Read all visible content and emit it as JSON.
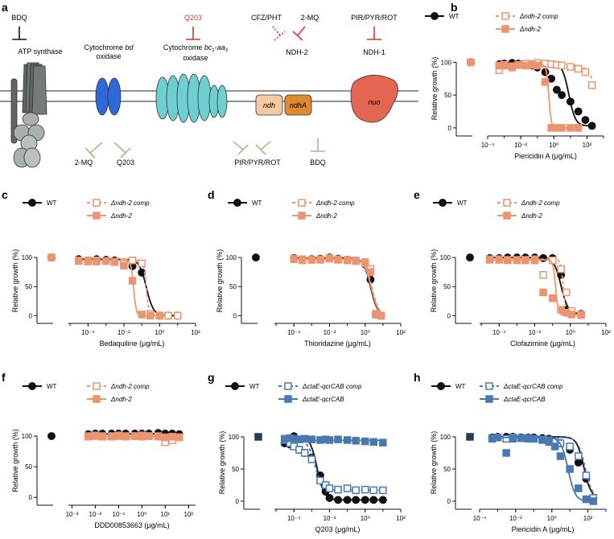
{
  "colors": {
    "wt": "#111111",
    "ndh2": "#eb9470",
    "qcr": "#4a79b1",
    "inhibitor_red": "#d43a2c",
    "inhibitor_black": "#111111",
    "inhibitor_tan": "#c9a98e",
    "atp_synthase": "#5f6664",
    "atp_synthase_light": "#a9b0ae",
    "bd_oxidase": "#2f68d9",
    "bc1_oxidase": "#6dcfcf",
    "ndh": "#f6c9a2",
    "ndhA": "#e08a2f",
    "nuo": "#e36552"
  },
  "diagram": {
    "letter": "a",
    "complexes": {
      "atp_synthase": "ATP synthase",
      "bd_line1": "Cytochrome",
      "bd_italic": "bd",
      "bd_line2": "oxidase",
      "bc1_line1": "Cytochrome",
      "bc1_italic": "bc",
      "bc1_sub1": "1",
      "bc1_mid": "-",
      "bc1_italic2": "aa",
      "bc1_sub2": "3",
      "bc1_line2": "oxidase",
      "ndh2": "NDH-2",
      "ndh1": "NDH-1",
      "ndh": "ndh",
      "ndhA": "ndhA",
      "nuo": "nuo"
    },
    "inhibitors_top": {
      "bdq": "BDQ",
      "q203": "Q203",
      "cfz_pht": "CFZ/PHT",
      "two_mq": "2-MQ",
      "pir": "PIR/PYR/ROT"
    },
    "inhibitors_bottom": {
      "two_mq": "2-MQ",
      "q203": "Q203",
      "pir": "PIR/PYR/ROT",
      "bdq": "BDQ"
    }
  },
  "chart_data": [
    {
      "letter": "b",
      "type": "line",
      "xlabel": "Piericidin A (μg/mL)",
      "ylabel": "Relative growth (%)",
      "xscale": "log",
      "xlim": [
        0.0001,
        1000
      ],
      "ylim": [
        -5,
        125
      ],
      "xticks": [
        "10⁻⁴",
        "10⁻²",
        "10⁰",
        "10²"
      ],
      "yticks": [
        0,
        50,
        100
      ],
      "legend": {
        "wt": "WT",
        "comp": "Δndh-2 comp",
        "mut": "Δndh-2"
      },
      "untreated": [
        {
          "series": "WT",
          "y": 100
        },
        {
          "series": "Δndh-2",
          "y": 100
        }
      ],
      "series": [
        {
          "name": "WT",
          "x": [
            0.0005,
            0.001,
            0.003,
            0.007,
            0.02,
            0.05,
            0.1,
            0.3,
            0.7,
            1.5,
            3,
            10,
            30,
            80,
            200
          ],
          "y": [
            97,
            98,
            99,
            98,
            97,
            95,
            92,
            85,
            75,
            58,
            50,
            40,
            25,
            12,
            3
          ],
          "ic50": 8
        },
        {
          "name": "Δndh-2 comp",
          "x": [
            0.0005,
            0.001,
            0.003,
            0.007,
            0.02,
            0.05,
            0.1,
            0.3,
            0.7,
            1.5,
            3,
            10,
            30,
            80,
            200
          ],
          "y": [
            88,
            95,
            92,
            96,
            98,
            97,
            99,
            98,
            97,
            96,
            95,
            93,
            90,
            85,
            65
          ],
          "ic50": 150
        },
        {
          "name": "Δndh-2",
          "x": [
            0.0005,
            0.001,
            0.003,
            0.007,
            0.02,
            0.05,
            0.1,
            0.3,
            0.7,
            1.5,
            3,
            10,
            30
          ],
          "y": [
            95,
            96,
            94,
            96,
            95,
            96,
            95,
            70,
            0,
            0,
            0,
            0,
            0
          ],
          "ic50": 0.5
        }
      ]
    },
    {
      "letter": "c",
      "type": "line",
      "xlabel": "Bedaquiline (μg/mL)",
      "ylabel": "Relative growth (%)",
      "xscale": "log",
      "xlim": [
        8e-06,
        100
      ],
      "ylim": [
        -5,
        125
      ],
      "xticks": [
        "10⁻⁴",
        "10⁻²",
        "10⁰",
        "10²"
      ],
      "yticks": [
        0,
        50,
        100
      ],
      "legend": {
        "wt": "WT",
        "comp": "Δndh-2 comp",
        "mut": "Δndh-2"
      },
      "untreated": [
        {
          "series": "WT",
          "y": 100
        },
        {
          "series": "Δndh-2",
          "y": 100
        }
      ],
      "series": [
        {
          "name": "WT",
          "x": [
            3e-05,
            0.0001,
            0.0003,
            0.001,
            0.003,
            0.01,
            0.03,
            0.1,
            0.3,
            1,
            3,
            10
          ],
          "y": [
            97,
            95,
            97,
            96,
            95,
            92,
            85,
            74,
            2,
            0,
            0,
            0
          ],
          "ic50": 0.18
        },
        {
          "name": "Δndh-2 comp",
          "x": [
            3e-05,
            0.0001,
            0.0003,
            0.001,
            0.003,
            0.01,
            0.03,
            0.1,
            0.3,
            1,
            3,
            10
          ],
          "y": [
            95,
            93,
            95,
            94,
            93,
            92,
            95,
            90,
            3,
            0,
            0,
            0
          ],
          "ic50": 0.18
        },
        {
          "name": "Δndh-2",
          "x": [
            3e-05,
            0.0001,
            0.0003,
            0.001,
            0.003,
            0.01,
            0.03,
            0.1,
            0.3,
            1
          ],
          "y": [
            94,
            95,
            93,
            94,
            92,
            86,
            60,
            2,
            0,
            0
          ],
          "ic50": 0.035
        }
      ]
    },
    {
      "letter": "d",
      "type": "line",
      "xlabel": "Thioridazine (μg/mL)",
      "ylabel": "Relative growth (%)",
      "xscale": "log",
      "xlim": [
        8e-06,
        100
      ],
      "ylim": [
        -5,
        125
      ],
      "xticks": [
        "10⁻⁴",
        "10⁻²",
        "10⁰",
        "10²"
      ],
      "yticks": [
        0,
        50,
        100
      ],
      "legend": {
        "wt": "WT",
        "comp": "Δndh-2 comp",
        "mut": "Δndh-2"
      },
      "untreated": [
        {
          "series": "WT",
          "y": 100
        }
      ],
      "series": [
        {
          "name": "WT",
          "x": [
            0.0001,
            0.0003,
            0.001,
            0.003,
            0.01,
            0.03,
            0.1,
            0.3,
            1,
            2,
            4,
            8
          ],
          "y": [
            99,
            96,
            97,
            98,
            100,
            98,
            96,
            95,
            88,
            62,
            2,
            0
          ],
          "ic50": 2
        },
        {
          "name": "Δndh-2 comp",
          "x": [
            0.0001,
            0.0003,
            0.001,
            0.003,
            0.01,
            0.03,
            0.1,
            0.3,
            1,
            2,
            4,
            8
          ],
          "y": [
            98,
            97,
            96,
            97,
            99,
            97,
            96,
            95,
            90,
            80,
            3,
            0
          ],
          "ic50": 2.4
        },
        {
          "name": "Δndh-2",
          "x": [
            0.0001,
            0.0003,
            0.001,
            0.003,
            0.01,
            0.03,
            0.1,
            0.3,
            1,
            2,
            4,
            8
          ],
          "y": [
            97,
            95,
            96,
            96,
            98,
            96,
            95,
            94,
            92,
            75,
            2,
            0
          ],
          "ic50": 2.2
        }
      ]
    },
    {
      "letter": "e",
      "type": "line",
      "xlabel": "Clofazimine (μg/mL)",
      "ylabel": "Relative growth (%)",
      "xscale": "log",
      "xlim": [
        8e-06,
        100
      ],
      "ylim": [
        -5,
        125
      ],
      "xticks": [
        "10⁻⁴",
        "10⁻²",
        "10⁰",
        "10²"
      ],
      "yticks": [
        0,
        50,
        100
      ],
      "legend": {
        "wt": "WT",
        "comp": "Δndh-2 comp",
        "mut": "Δndh-2"
      },
      "untreated": [
        {
          "series": "WT",
          "y": 100
        }
      ],
      "series": [
        {
          "name": "WT",
          "x": [
            3e-05,
            0.0001,
            0.0003,
            0.001,
            0.003,
            0.01,
            0.03,
            0.1,
            0.3,
            0.6,
            1.2,
            4
          ],
          "y": [
            99,
            99,
            100,
            100,
            100,
            100,
            99,
            99,
            70,
            10,
            3,
            3
          ],
          "ic50": 0.3
        },
        {
          "name": "Δndh-2 comp",
          "x": [
            3e-05,
            0.0001,
            0.0003,
            0.001,
            0.003,
            0.01,
            0.03,
            0.1,
            0.3,
            0.6,
            1.2,
            4
          ],
          "y": [
            97,
            97,
            96,
            95,
            96,
            97,
            70,
            95,
            80,
            40,
            8,
            2
          ],
          "ic50": 0.4
        },
        {
          "name": "Δndh-2",
          "x": [
            3e-05,
            0.0001,
            0.0003,
            0.001,
            0.003,
            0.01,
            0.03,
            0.1,
            0.3,
            0.6,
            1.2,
            4
          ],
          "y": [
            96,
            96,
            95,
            96,
            95,
            95,
            40,
            30,
            10,
            5,
            2,
            1
          ],
          "ic50": 0.15
        }
      ]
    },
    {
      "letter": "f",
      "type": "line",
      "xlabel": "DDD00853663 (μg/mL)",
      "ylabel": "Relative growth (%)",
      "xscale": "log",
      "xlim": [
        0.0007,
        200
      ],
      "ylim": [
        -5,
        125
      ],
      "xticks": [
        "10⁻³",
        "10⁻²",
        "10⁻¹",
        "10⁰",
        "10¹",
        "10²"
      ],
      "yticks": [
        0,
        50,
        100
      ],
      "legend": {
        "wt": "WT",
        "comp": "Δndh-2 comp",
        "mut": "Δndh-2"
      },
      "untreated": [
        {
          "series": "WT",
          "y": 100
        }
      ],
      "series": [
        {
          "name": "WT",
          "x": [
            0.005,
            0.01,
            0.02,
            0.05,
            0.1,
            0.2,
            0.5,
            1,
            2,
            5,
            10,
            20,
            40
          ],
          "y": [
            103,
            104,
            104,
            104,
            104,
            104,
            104,
            104,
            104,
            105,
            104,
            104,
            103
          ],
          "ic50": null
        },
        {
          "name": "Δndh-2 comp",
          "x": [
            0.005,
            0.01,
            0.02,
            0.05,
            0.1,
            0.2,
            0.5,
            1,
            2,
            5,
            10,
            20,
            40
          ],
          "y": [
            100,
            101,
            100,
            100,
            101,
            100,
            100,
            101,
            100,
            100,
            90,
            93,
            98
          ],
          "ic50": null
        },
        {
          "name": "Δndh-2",
          "x": [
            0.005,
            0.01,
            0.02,
            0.05,
            0.1,
            0.2,
            0.5,
            1,
            2,
            5,
            10,
            20,
            40
          ],
          "y": [
            99,
            100,
            99,
            99,
            100,
            99,
            100,
            99,
            100,
            99,
            98,
            99,
            98
          ],
          "ic50": null
        }
      ]
    },
    {
      "letter": "g",
      "type": "line",
      "xlabel": "Q203 (μg/mL)",
      "ylabel": "Relative growth (%)",
      "xscale": "log",
      "xlim": [
        8e-06,
        100
      ],
      "ylim": [
        -5,
        125
      ],
      "xticks": [
        "10⁻⁴",
        "10⁻²",
        "10⁰",
        "10²"
      ],
      "yticks": [
        0,
        50,
        100
      ],
      "legend": {
        "wt": "WT",
        "comp": "ΔctaE-qcrCAB comp",
        "mut": "ΔctaE-qcrCAB"
      },
      "untreated": [
        {
          "series": "ΔctaE-qcrCAB",
          "y": 100
        }
      ],
      "series": [
        {
          "name": "WT",
          "x": [
            3e-05,
            6e-05,
            0.0001,
            0.0002,
            0.0004,
            0.001,
            0.003,
            0.006,
            0.01,
            0.03,
            0.1,
            0.3,
            1,
            3,
            10
          ],
          "y": [
            90,
            88,
            101,
            80,
            75,
            68,
            40,
            15,
            5,
            2,
            2,
            2,
            2,
            2,
            2
          ],
          "ic50": 0.002
        },
        {
          "name": "ΔctaE-qcrCAB comp",
          "x": [
            3e-05,
            6e-05,
            0.0001,
            0.0002,
            0.0004,
            0.001,
            0.003,
            0.006,
            0.01,
            0.03,
            0.1,
            0.3,
            1,
            3,
            10
          ],
          "y": [
            95,
            90,
            85,
            80,
            75,
            65,
            32,
            25,
            20,
            18,
            20,
            17,
            18,
            17,
            17
          ],
          "ic50": 0.0015
        },
        {
          "name": "ΔctaE-qcrCAB",
          "x": [
            3e-05,
            6e-05,
            0.0001,
            0.0002,
            0.0004,
            0.001,
            0.003,
            0.006,
            0.01,
            0.03,
            0.1,
            0.3,
            1,
            3,
            10
          ],
          "y": [
            97,
            98,
            97,
            96,
            97,
            96,
            95,
            96,
            95,
            96,
            95,
            94,
            93,
            92,
            91
          ],
          "ic50": null
        }
      ]
    },
    {
      "letter": "h",
      "type": "line",
      "xlabel": "Piericidin A (μg/mL)",
      "ylabel": "Relative growth (%)",
      "xscale": "log",
      "xlim": [
        0.0001,
        1000
      ],
      "ylim": [
        -5,
        125
      ],
      "xticks": [
        "10⁻⁴",
        "10⁻²",
        "10⁰",
        "10²"
      ],
      "yticks": [
        0,
        50,
        100
      ],
      "legend": {
        "wt": "WT",
        "comp": "ΔctaE-qcrCAB comp",
        "mut": "ΔctaE-qcrCAB"
      },
      "untreated": [
        {
          "series": "ΔctaE-qcrCAB",
          "y": 100
        }
      ],
      "series": [
        {
          "name": "WT",
          "x": [
            0.0005,
            0.001,
            0.003,
            0.007,
            0.02,
            0.05,
            0.1,
            0.3,
            0.7,
            1.5,
            3,
            10,
            30,
            80,
            200
          ],
          "y": [
            99,
            100,
            100,
            100,
            99,
            99,
            99,
            98,
            97,
            95,
            90,
            80,
            60,
            35,
            5
          ],
          "ic50": 60
        },
        {
          "name": "ΔctaE-qcrCAB comp",
          "x": [
            0.0005,
            0.001,
            0.003,
            0.007,
            0.02,
            0.05,
            0.1,
            0.3,
            0.7,
            1.5,
            3,
            10,
            30,
            80,
            200
          ],
          "y": [
            98,
            99,
            97,
            99,
            98,
            98,
            97,
            96,
            95,
            93,
            90,
            85,
            70,
            40,
            5
          ],
          "ic50": 70
        },
        {
          "name": "ΔctaE-qcrCAB",
          "x": [
            0.0005,
            0.001,
            0.003,
            0.007,
            0.02,
            0.05,
            0.1,
            0.3,
            0.7,
            1.5,
            3,
            10,
            30,
            80,
            200
          ],
          "y": [
            97,
            99,
            75,
            97,
            98,
            97,
            97,
            95,
            92,
            85,
            70,
            50,
            20,
            3,
            0
          ],
          "ic50": 8
        }
      ]
    }
  ]
}
